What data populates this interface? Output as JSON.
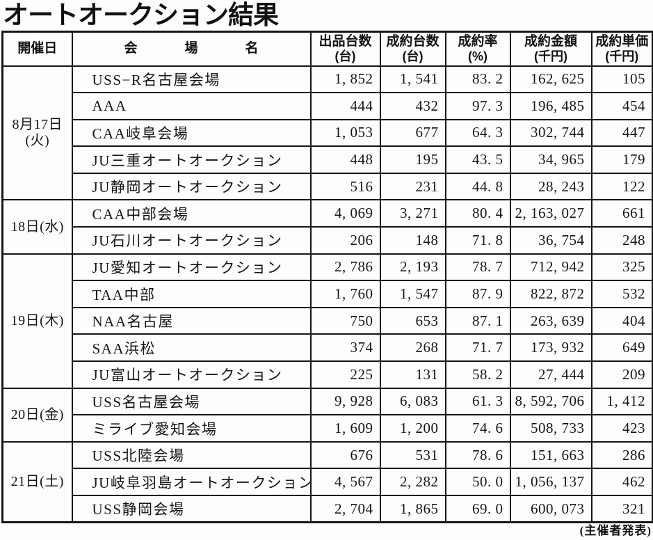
{
  "title": "オートオークション結果",
  "footer": "(主催者発表)",
  "table": {
    "headers": {
      "date": "開催日",
      "venue": "会場名",
      "cols": [
        {
          "title": "出品台数",
          "unit": "(台)"
        },
        {
          "title": "成約台数",
          "unit": "(台)"
        },
        {
          "title": "成約率",
          "unit": "(%)"
        },
        {
          "title": "成約金額",
          "unit": "(千円)"
        },
        {
          "title": "成約単価",
          "unit": "(千円)"
        }
      ]
    },
    "groups": [
      {
        "date_line1": "8月17日",
        "date_line2": "(火)",
        "rows": [
          {
            "venue": "USS−R名古屋会場",
            "listed": "1,852",
            "sold": "1,541",
            "rate": "83.2",
            "amount": "162,625",
            "unit_price": "105"
          },
          {
            "venue": "AAA",
            "listed": "444",
            "sold": "432",
            "rate": "97.3",
            "amount": "196,485",
            "unit_price": "454"
          },
          {
            "venue": "CAA岐阜会場",
            "listed": "1,053",
            "sold": "677",
            "rate": "64.3",
            "amount": "302,744",
            "unit_price": "447"
          },
          {
            "venue": "JU三重オートオークション",
            "listed": "448",
            "sold": "195",
            "rate": "43.5",
            "amount": "34,965",
            "unit_price": "179"
          },
          {
            "venue": "JU静岡オートオークション",
            "listed": "516",
            "sold": "231",
            "rate": "44.8",
            "amount": "28,243",
            "unit_price": "122"
          }
        ]
      },
      {
        "date_line1": "18日(水)",
        "rows": [
          {
            "venue": "CAA中部会場",
            "listed": "4,069",
            "sold": "3,271",
            "rate": "80.4",
            "amount": "2,163,027",
            "unit_price": "661"
          },
          {
            "venue": "JU石川オートオークション",
            "listed": "206",
            "sold": "148",
            "rate": "71.8",
            "amount": "36,754",
            "unit_price": "248"
          }
        ]
      },
      {
        "date_line1": "19日(木)",
        "rows": [
          {
            "venue": "JU愛知オートオークション",
            "listed": "2,786",
            "sold": "2,193",
            "rate": "78.7",
            "amount": "712,942",
            "unit_price": "325"
          },
          {
            "venue": "TAA中部",
            "listed": "1,760",
            "sold": "1,547",
            "rate": "87.9",
            "amount": "822,872",
            "unit_price": "532"
          },
          {
            "venue": "NAA名古屋",
            "listed": "750",
            "sold": "653",
            "rate": "87.1",
            "amount": "263,639",
            "unit_price": "404"
          },
          {
            "venue": "SAA浜松",
            "listed": "374",
            "sold": "268",
            "rate": "71.7",
            "amount": "173,932",
            "unit_price": "649"
          },
          {
            "venue": "JU富山オートオークション",
            "listed": "225",
            "sold": "131",
            "rate": "58.2",
            "amount": "27,444",
            "unit_price": "209"
          }
        ]
      },
      {
        "date_line1": "20日(金)",
        "rows": [
          {
            "venue": "USS名古屋会場",
            "listed": "9,928",
            "sold": "6,083",
            "rate": "61.3",
            "amount": "8,592,706",
            "unit_price": "1,412"
          },
          {
            "venue": "ミライブ愛知会場",
            "listed": "1,609",
            "sold": "1,200",
            "rate": "74.6",
            "amount": "508,733",
            "unit_price": "423"
          }
        ]
      },
      {
        "date_line1": "21日(土)",
        "rows": [
          {
            "venue": "USS北陸会場",
            "listed": "676",
            "sold": "531",
            "rate": "78.6",
            "amount": "151,663",
            "unit_price": "286"
          },
          {
            "venue": "JU岐阜羽島オートオークション",
            "listed": "4,567",
            "sold": "2,282",
            "rate": "50.0",
            "amount": "1,056,137",
            "unit_price": "462"
          },
          {
            "venue": "USS静岡会場",
            "listed": "2,704",
            "sold": "1,865",
            "rate": "69.0",
            "amount": "600,073",
            "unit_price": "321"
          }
        ]
      }
    ]
  }
}
